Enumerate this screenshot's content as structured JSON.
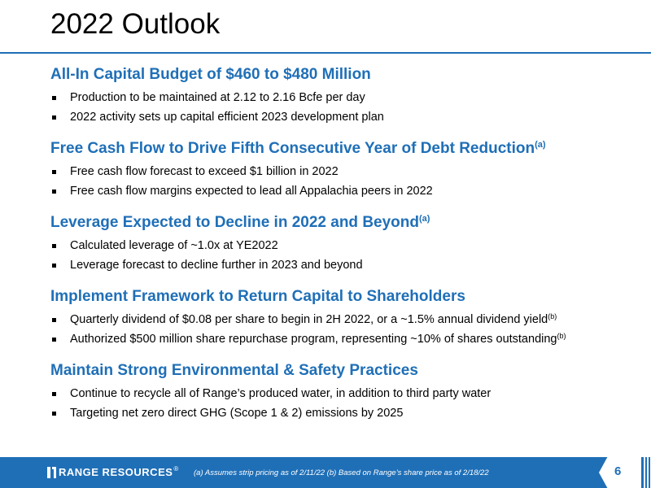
{
  "slide": {
    "title": "2022 Outlook",
    "page_number": "6"
  },
  "sections": [
    {
      "heading": "All-In Capital Budget of $460 to $480 Million",
      "heading_note": "",
      "bullets": [
        {
          "text": "Production to be maintained at 2.12 to 2.16 Bcfe per day",
          "note": ""
        },
        {
          "text": "2022 activity sets up capital efficient 2023 development plan",
          "note": ""
        }
      ]
    },
    {
      "heading": "Free Cash Flow to Drive Fifth Consecutive Year of Debt Reduction",
      "heading_note": "(a)",
      "bullets": [
        {
          "text": "Free cash flow forecast to exceed $1 billion in 2022",
          "note": ""
        },
        {
          "text": "Free cash flow margins expected to lead all Appalachia peers in 2022",
          "note": ""
        }
      ]
    },
    {
      "heading": "Leverage Expected to Decline in 2022 and Beyond",
      "heading_note": "(a)",
      "bullets": [
        {
          "text": "Calculated leverage of ~1.0x at YE2022",
          "note": ""
        },
        {
          "text": "Leverage forecast to decline further in 2023 and beyond",
          "note": ""
        }
      ]
    },
    {
      "heading": "Implement Framework to Return Capital to Shareholders",
      "heading_note": "",
      "bullets": [
        {
          "text": "Quarterly dividend of $0.08 per share to begin in 2H 2022, or a ~1.5% annual dividend yield",
          "note": "(b)"
        },
        {
          "text": "Authorized $500 million share repurchase program, representing ~10% of shares outstanding",
          "note": "(b)"
        }
      ]
    },
    {
      "heading": "Maintain Strong Environmental & Safety Practices",
      "heading_note": "",
      "bullets": [
        {
          "text": "Continue to recycle all of Range’s produced water, in addition to third party water",
          "note": ""
        },
        {
          "text": "Targeting net zero direct GHG (Scope 1 & 2) emissions by 2025",
          "note": ""
        }
      ]
    }
  ],
  "footer": {
    "logo_text": "RANGE RESOURCES",
    "logo_mark": "®",
    "footnote": "(a) Assumes strip pricing as of 2/11/22 (b) Based on Range’s share price as of 2/18/22"
  },
  "colors": {
    "accent": "#1f6fb7",
    "background": "#ffffff",
    "text": "#000000"
  }
}
